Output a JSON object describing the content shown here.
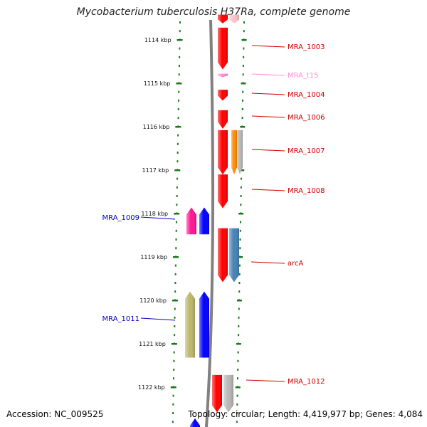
{
  "title": "Mycobacterium tuberculosis H37Ra, complete genome",
  "footer": {
    "accession": "Accession: NC_009525",
    "summary": "Topology: circular; Length: 4,419,977 bp; Genes: 4,084"
  },
  "colors": {
    "background": "#ffffff",
    "tick": "#1a7a1a",
    "backbone": "#808080",
    "forward_label": "#d00000",
    "reverse_label": "#0000c0",
    "trna_label": "#ff8ed0"
  },
  "ticks": [
    "1114 kbp",
    "1115 kbp",
    "1116 kbp",
    "1117 kbp",
    "1118 kbp",
    "1119 kbp",
    "1120 kbp",
    "1121 kbp",
    "1122 kbp"
  ],
  "genes": [
    {
      "label": "",
      "strand": "forward",
      "color": "#ff0000",
      "start_kbp": 1113.42,
      "end_kbp": 1113.62
    },
    {
      "label": "",
      "strand": "forward",
      "color": "#ffc0c8",
      "start_kbp": 1113.42,
      "end_kbp": 1113.62
    },
    {
      "label": "MRA_1003",
      "strand": "forward",
      "color": "#ff0000",
      "start_kbp": 1113.72,
      "end_kbp": 1114.68
    },
    {
      "label": "MRA_t15",
      "strand": "forward",
      "color": "#ff8ed0",
      "start_kbp": 1114.78,
      "end_kbp": 1114.86
    },
    {
      "label": "MRA_1004",
      "strand": "forward",
      "color": "#ff0000",
      "start_kbp": 1115.15,
      "end_kbp": 1115.4
    },
    {
      "label": "MRA_1006",
      "strand": "forward",
      "color": "#ff0000",
      "start_kbp": 1115.62,
      "end_kbp": 1116.05
    },
    {
      "label": "MRA_1007",
      "strand": "forward",
      "color": "#ff0000",
      "start_kbp": 1116.08,
      "end_kbp": 1117.1
    },
    {
      "label": "",
      "strand": "forward",
      "color": "#ff8c00",
      "start_kbp": 1116.08,
      "end_kbp": 1117.1
    },
    {
      "label": "",
      "strand": "forward",
      "color": "#b8b8b8",
      "start_kbp": 1116.08,
      "end_kbp": 1117.1
    },
    {
      "label": "MRA_1008",
      "strand": "forward",
      "color": "#ff0000",
      "start_kbp": 1117.1,
      "end_kbp": 1117.88
    },
    {
      "label": "MRA_1009",
      "strand": "reverse",
      "color": "#ff1493",
      "start_kbp": 1117.86,
      "end_kbp": 1118.48
    },
    {
      "label": "",
      "strand": "reverse",
      "color": "#0000ff",
      "start_kbp": 1117.86,
      "end_kbp": 1118.48
    },
    {
      "label": "arcA",
      "strand": "forward",
      "color": "#ff0000",
      "start_kbp": 1118.34,
      "end_kbp": 1119.58
    },
    {
      "label": "",
      "strand": "forward",
      "color": "#4682b4",
      "start_kbp": 1118.34,
      "end_kbp": 1119.58
    },
    {
      "label": "",
      "strand": "reverse",
      "color": "#bdb76b",
      "start_kbp": 1119.8,
      "end_kbp": 1121.32
    },
    {
      "label": "MRA_1011",
      "strand": "reverse",
      "color": "#0000ff",
      "start_kbp": 1119.8,
      "end_kbp": 1121.32
    },
    {
      "label": "MRA_1012",
      "strand": "forward",
      "color": "#ff0000",
      "start_kbp": 1121.72,
      "end_kbp": 1122.58
    },
    {
      "label": "",
      "strand": "forward",
      "color": "#b8b8b8",
      "start_kbp": 1121.72,
      "end_kbp": 1122.58
    },
    {
      "label": "",
      "strand": "reverse",
      "color": "#0000ff",
      "start_kbp": 1122.72,
      "end_kbp": 1123.1
    }
  ]
}
